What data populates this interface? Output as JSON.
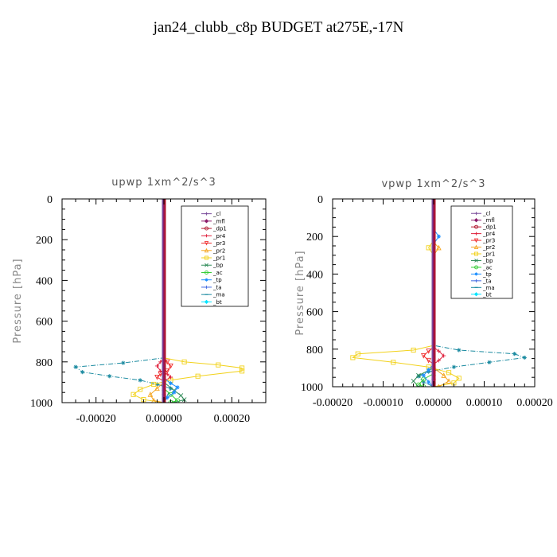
{
  "figure_title": "jan24_clubb_c8p  BUDGET at275E,-17N",
  "legend_items": [
    {
      "label": "_cl",
      "color": "#7a4b9a",
      "marker": "+"
    },
    {
      "label": "_mfl",
      "color": "#8b1a6a",
      "marker": "diamond"
    },
    {
      "label": "_dp1",
      "color": "#b0142c",
      "marker": "circle"
    },
    {
      "label": "_pr4",
      "color": "#e0203c",
      "marker": "+"
    },
    {
      "label": "_pr3",
      "color": "#f03030",
      "marker": "triangle-down"
    },
    {
      "label": "_pr2",
      "color": "#f5a623",
      "marker": "triangle"
    },
    {
      "label": "_pr1",
      "color": "#f2d21b",
      "marker": "square"
    },
    {
      "label": "_bp",
      "color": "#2e8b57",
      "marker": "x"
    },
    {
      "label": "_ac",
      "color": "#32cd32",
      "marker": "circle"
    },
    {
      "label": "_tp",
      "color": "#1e90ff",
      "marker": "*"
    },
    {
      "label": "_ta",
      "color": "#4169e1",
      "marker": "+"
    },
    {
      "label": "_ma",
      "color": "#1a8aa0",
      "marker": "dash"
    },
    {
      "label": "_bt",
      "color": "#00e5ff",
      "marker": "diamond"
    }
  ],
  "chart_data": [
    {
      "type": "line",
      "title": "upwp   1xm^2/s^3",
      "ylabel": "Pressure [hPa]",
      "xlim": [
        -0.0003,
        0.0003
      ],
      "ylim": [
        1000,
        0
      ],
      "xticks": [
        "-0.00020",
        "0.00000",
        "0.00020"
      ],
      "xtick_values": [
        -0.0002,
        0.0,
        0.0002
      ],
      "yticks": [
        "0",
        "200",
        "400",
        "600",
        "800",
        "1000"
      ],
      "ytick_values": [
        0,
        200,
        400,
        600,
        800,
        1000
      ],
      "series": [
        {
          "name": "_ma",
          "color": "#1a8aa0",
          "marker": "*",
          "dash": "6,2,1,2",
          "points": [
            [
              0,
              0
            ],
            [
              0,
              780
            ],
            [
              -0.00012,
              805
            ],
            [
              -0.00026,
              825
            ],
            [
              -0.00024,
              850
            ],
            [
              -0.00016,
              870
            ],
            [
              -7e-05,
              890
            ],
            [
              -2e-05,
              910
            ],
            [
              2e-05,
              930
            ],
            [
              0,
              1000
            ]
          ]
        },
        {
          "name": "_pr1",
          "color": "#f2d21b",
          "marker": "square",
          "dash": "",
          "points": [
            [
              0,
              0
            ],
            [
              0,
              780
            ],
            [
              6e-05,
              800
            ],
            [
              0.00016,
              815
            ],
            [
              0.00023,
              830
            ],
            [
              0.00023,
              845
            ],
            [
              0.0001,
              870
            ],
            [
              2e-05,
              890
            ],
            [
              -3e-05,
              910
            ],
            [
              -7e-05,
              935
            ],
            [
              -9e-05,
              960
            ],
            [
              -6e-05,
              985
            ],
            [
              0,
              1000
            ]
          ]
        },
        {
          "name": "_pr2",
          "color": "#f5a623",
          "marker": "triangle",
          "dash": "",
          "points": [
            [
              0,
              0
            ],
            [
              0,
              900
            ],
            [
              -2e-05,
              930
            ],
            [
              -4e-05,
              960
            ],
            [
              -3e-05,
              990
            ],
            [
              0,
              1000
            ]
          ]
        },
        {
          "name": "_bp",
          "color": "#2e8b57",
          "marker": "x",
          "dash": "",
          "points": [
            [
              0,
              0
            ],
            [
              0,
              900
            ],
            [
              3e-05,
              940
            ],
            [
              5e-05,
              965
            ],
            [
              6e-05,
              985
            ],
            [
              3e-05,
              1000
            ]
          ]
        },
        {
          "name": "_ac",
          "color": "#32cd32",
          "marker": "circle",
          "dash": "",
          "points": [
            [
              0,
              0
            ],
            [
              0,
              930
            ],
            [
              2e-05,
              960
            ],
            [
              4e-05,
              990
            ],
            [
              2e-05,
              1000
            ]
          ]
        },
        {
          "name": "_tp",
          "color": "#1e90ff",
          "marker": "*",
          "dash": "",
          "points": [
            [
              0,
              0
            ],
            [
              0,
              880
            ],
            [
              2e-05,
              905
            ],
            [
              4e-05,
              925
            ],
            [
              3e-05,
              950
            ],
            [
              1e-05,
              975
            ],
            [
              0,
              1000
            ]
          ]
        },
        {
          "name": "_pr3",
          "color": "#f03030",
          "marker": "triangle-down",
          "dash": "",
          "points": [
            [
              0,
              0
            ],
            [
              0,
              780
            ],
            [
              1e-05,
              800
            ],
            [
              2e-05,
              820
            ],
            [
              1e-05,
              845
            ],
            [
              -1e-05,
              860
            ],
            [
              -2e-05,
              875
            ],
            [
              0,
              895
            ],
            [
              0,
              1000
            ]
          ]
        },
        {
          "name": "_pr4",
          "color": "#e0203c",
          "marker": "+",
          "dash": "",
          "points": [
            [
              0,
              0
            ],
            [
              0,
              780
            ],
            [
              -1e-05,
              800
            ],
            [
              -2e-05,
              820
            ],
            [
              -1e-05,
              845
            ],
            [
              1e-05,
              860
            ],
            [
              2e-05,
              875
            ],
            [
              0,
              895
            ],
            [
              0,
              1000
            ]
          ]
        },
        {
          "name": "_dp1",
          "color": "#b0142c",
          "marker": "circle",
          "dash": "",
          "points": [
            [
              0,
              0
            ],
            [
              0,
              1000
            ]
          ]
        },
        {
          "name": "_mfl",
          "color": "#8b1a6a",
          "marker": "diamond",
          "dash": "",
          "points": [
            [
              0,
              0
            ],
            [
              0,
              1000
            ]
          ]
        },
        {
          "name": "_cl",
          "color": "#7a4b9a",
          "marker": "+",
          "dash": "",
          "points": [
            [
              0,
              0
            ],
            [
              0,
              1000
            ]
          ]
        }
      ]
    },
    {
      "type": "line",
      "title": "vpwp   1xm^2/s^3",
      "ylabel": "Pressure [hPa]",
      "xlim": [
        -0.0002,
        0.0002
      ],
      "ylim": [
        1000,
        0
      ],
      "xticks": [
        "-0.00020",
        "-0.00010",
        "0.00000",
        "0.00010",
        "0.00020"
      ],
      "xtick_values": [
        -0.0002,
        -0.0001,
        0.0,
        0.0001,
        0.0002
      ],
      "yticks": [
        "0",
        "200",
        "400",
        "600",
        "800",
        "1000"
      ],
      "ytick_values": [
        0,
        200,
        400,
        600,
        800,
        1000
      ],
      "series": [
        {
          "name": "_ma",
          "color": "#1a8aa0",
          "marker": "*",
          "dash": "6,2,1,2",
          "points": [
            [
              0,
              0
            ],
            [
              0,
              780
            ],
            [
              5e-05,
              805
            ],
            [
              0.00016,
              825
            ],
            [
              0.00018,
              845
            ],
            [
              0.00011,
              870
            ],
            [
              4e-05,
              895
            ],
            [
              -1e-05,
              920
            ],
            [
              -3e-05,
              945
            ],
            [
              -2e-05,
              975
            ],
            [
              0,
              1000
            ]
          ]
        },
        {
          "name": "_pr1",
          "color": "#f2d21b",
          "marker": "square",
          "dash": "",
          "points": [
            [
              0,
              0
            ],
            [
              0,
              220
            ],
            [
              -1e-05,
              260
            ],
            [
              0,
              300
            ],
            [
              0,
              780
            ],
            [
              -4e-05,
              805
            ],
            [
              -0.00015,
              825
            ],
            [
              -0.00016,
              845
            ],
            [
              -8e-05,
              870
            ],
            [
              -1e-05,
              895
            ],
            [
              3e-05,
              925
            ],
            [
              5e-05,
              955
            ],
            [
              4e-05,
              980
            ],
            [
              0,
              1000
            ]
          ]
        },
        {
          "name": "_pr2",
          "color": "#f5a623",
          "marker": "triangle",
          "dash": "",
          "points": [
            [
              0,
              0
            ],
            [
              0,
              230
            ],
            [
              1e-05,
              260
            ],
            [
              0,
              300
            ],
            [
              0,
              900
            ],
            [
              2e-05,
              940
            ],
            [
              3e-05,
              970
            ],
            [
              1e-05,
              1000
            ]
          ]
        },
        {
          "name": "_bp",
          "color": "#2e8b57",
          "marker": "x",
          "dash": "",
          "points": [
            [
              0,
              0
            ],
            [
              0,
              900
            ],
            [
              -3e-05,
              940
            ],
            [
              -4e-05,
              970
            ],
            [
              -3e-05,
              1000
            ]
          ]
        },
        {
          "name": "_ac",
          "color": "#32cd32",
          "marker": "circle",
          "dash": "",
          "points": [
            [
              0,
              0
            ],
            [
              0,
              930
            ],
            [
              -2e-05,
              960
            ],
            [
              -3e-05,
              990
            ],
            [
              -2e-05,
              1000
            ]
          ]
        },
        {
          "name": "_tp",
          "color": "#1e90ff",
          "marker": "*",
          "dash": "",
          "points": [
            [
              0,
              0
            ],
            [
              0,
              160
            ],
            [
              1e-05,
              200
            ],
            [
              0,
              240
            ],
            [
              0,
              880
            ],
            [
              -1e-05,
              910
            ],
            [
              -2e-05,
              940
            ],
            [
              -1e-05,
              975
            ],
            [
              0,
              1000
            ]
          ]
        },
        {
          "name": "_pr3",
          "color": "#f03030",
          "marker": "triangle-down",
          "dash": "",
          "points": [
            [
              0,
              0
            ],
            [
              0,
              790
            ],
            [
              -1e-05,
              810
            ],
            [
              -2e-05,
              835
            ],
            [
              -1e-05,
              860
            ],
            [
              0,
              880
            ],
            [
              0,
              1000
            ]
          ]
        },
        {
          "name": "_pr4",
          "color": "#e0203c",
          "marker": "+",
          "dash": "",
          "points": [
            [
              0,
              0
            ],
            [
              0,
              790
            ],
            [
              1e-05,
              810
            ],
            [
              2e-05,
              835
            ],
            [
              1e-05,
              860
            ],
            [
              0,
              880
            ],
            [
              0,
              1000
            ]
          ]
        },
        {
          "name": "_dp1",
          "color": "#b0142c",
          "marker": "circle",
          "dash": "",
          "points": [
            [
              0,
              0
            ],
            [
              0,
              1000
            ]
          ]
        },
        {
          "name": "_mfl",
          "color": "#8b1a6a",
          "marker": "diamond",
          "dash": "",
          "points": [
            [
              0,
              0
            ],
            [
              0,
              1000
            ]
          ]
        },
        {
          "name": "_cl",
          "color": "#7a4b9a",
          "marker": "+",
          "dash": "",
          "points": [
            [
              0,
              0
            ],
            [
              0,
              1000
            ]
          ]
        }
      ]
    }
  ]
}
